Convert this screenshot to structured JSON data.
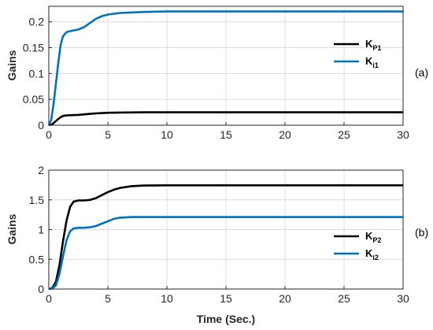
{
  "chart_data": [
    {
      "type": "line",
      "panel_label": "(a)",
      "xlabel": "",
      "ylabel": "Gains",
      "xlim": [
        0,
        30
      ],
      "ylim": [
        0,
        0.23
      ],
      "xticks": [
        "0",
        "5",
        "10",
        "15",
        "20",
        "25",
        "30"
      ],
      "yticks": [
        "0",
        "0.05",
        "0.1",
        "0.15",
        "0.2"
      ],
      "ytick_values": [
        0,
        0.05,
        0.1,
        0.15,
        0.2
      ],
      "grid": true,
      "legend_position": "right",
      "series": [
        {
          "name": "K_P1",
          "legend_main": "K",
          "legend_sub": "P1",
          "color": "#000000",
          "x": [
            0,
            0.3,
            0.6,
            0.9,
            1.2,
            1.5,
            2,
            2.5,
            3,
            4,
            5,
            6,
            8,
            10,
            15,
            20,
            25,
            30
          ],
          "y": [
            0,
            0.002,
            0.008,
            0.014,
            0.018,
            0.019,
            0.0195,
            0.02,
            0.021,
            0.023,
            0.024,
            0.0245,
            0.025,
            0.025,
            0.025,
            0.025,
            0.025,
            0.025
          ]
        },
        {
          "name": "K_i1",
          "legend_main": "K",
          "legend_sub": "i1",
          "color": "#0072BD",
          "x": [
            0,
            0.2,
            0.4,
            0.6,
            0.8,
            1.0,
            1.2,
            1.5,
            2,
            2.5,
            3,
            3.5,
            4,
            4.5,
            5,
            6,
            8,
            10,
            15,
            20,
            25,
            30
          ],
          "y": [
            0,
            0.01,
            0.04,
            0.08,
            0.12,
            0.155,
            0.172,
            0.18,
            0.183,
            0.185,
            0.19,
            0.198,
            0.206,
            0.211,
            0.214,
            0.217,
            0.219,
            0.22,
            0.22,
            0.22,
            0.22,
            0.22
          ]
        }
      ]
    },
    {
      "type": "line",
      "panel_label": "(b)",
      "xlabel": "Time (Sec.)",
      "ylabel": "Gains",
      "xlim": [
        0,
        30
      ],
      "ylim": [
        0,
        2
      ],
      "xticks": [
        "0",
        "5",
        "10",
        "15",
        "20",
        "25",
        "30"
      ],
      "yticks": [
        "0",
        "0.5",
        "1",
        "1.5",
        "2"
      ],
      "ytick_values": [
        0,
        0.5,
        1,
        1.5,
        2
      ],
      "grid": true,
      "legend_position": "bottom-right",
      "series": [
        {
          "name": "K_P2",
          "legend_main": "K",
          "legend_sub": "P2",
          "color": "#000000",
          "x": [
            0,
            0.3,
            0.6,
            0.9,
            1.2,
            1.5,
            1.8,
            2.1,
            2.5,
            3,
            3.5,
            4,
            4.5,
            5,
            5.5,
            6,
            7,
            8,
            10,
            15,
            20,
            25,
            30
          ],
          "y": [
            0,
            0.02,
            0.12,
            0.4,
            0.8,
            1.15,
            1.38,
            1.47,
            1.49,
            1.49,
            1.5,
            1.53,
            1.58,
            1.63,
            1.67,
            1.7,
            1.73,
            1.74,
            1.745,
            1.745,
            1.745,
            1.745,
            1.745
          ]
        },
        {
          "name": "K_i2",
          "legend_main": "K",
          "legend_sub": "i2",
          "color": "#0072BD",
          "x": [
            0,
            0.3,
            0.6,
            0.9,
            1.2,
            1.5,
            1.8,
            2.1,
            2.5,
            3,
            3.5,
            4,
            4.5,
            5,
            5.5,
            6,
            7,
            8,
            10,
            15,
            20,
            25,
            30
          ],
          "y": [
            0,
            0.01,
            0.06,
            0.25,
            0.55,
            0.82,
            0.97,
            1.02,
            1.03,
            1.03,
            1.04,
            1.06,
            1.1,
            1.14,
            1.18,
            1.2,
            1.21,
            1.21,
            1.21,
            1.21,
            1.21,
            1.21,
            1.21
          ]
        }
      ]
    }
  ]
}
